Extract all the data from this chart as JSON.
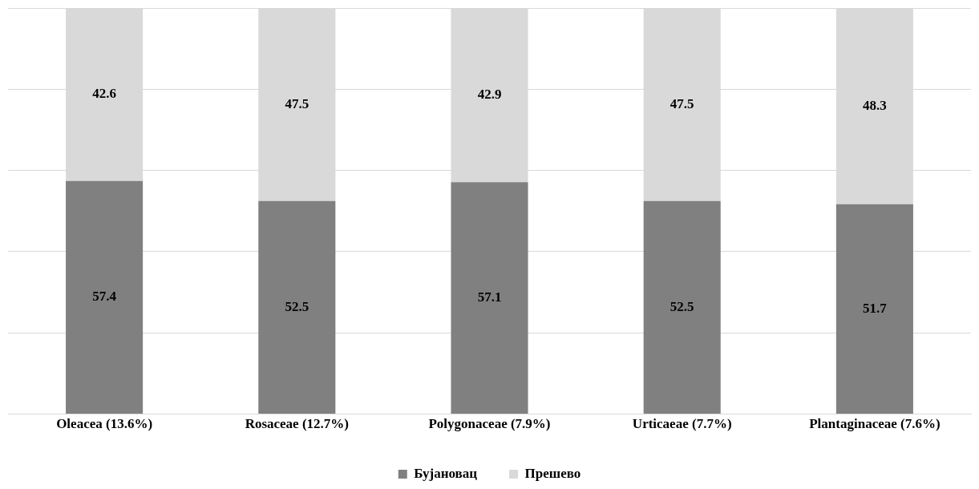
{
  "chart_data": {
    "type": "bar",
    "stacked": true,
    "categories": [
      "Oleacea (13.6%)",
      "Rosaceae (12.7%)",
      "Polygonaceae (7.9%)",
      "Urticaeae (7.7%)",
      "Plantaginaceae (7.6%)"
    ],
    "series": [
      {
        "name": "Бујановац",
        "color": "#808080",
        "values": [
          57.4,
          52.5,
          57.1,
          52.5,
          51.7
        ]
      },
      {
        "name": "Прешево",
        "color": "#d9d9d9",
        "values": [
          42.6,
          47.5,
          42.9,
          47.5,
          48.3
        ]
      }
    ],
    "ylim": [
      0,
      100
    ],
    "yticks": [
      {
        "value": 0,
        "label": null
      },
      {
        "value": 20,
        "label": null
      },
      {
        "value": 40,
        "label": null
      },
      {
        "value": 60,
        "label": null
      },
      {
        "value": 80,
        "label": null
      },
      {
        "value": 100,
        "label": null
      }
    ],
    "tick_labels": "x",
    "grid": "y",
    "legend": "bottom",
    "data_labels": true
  }
}
